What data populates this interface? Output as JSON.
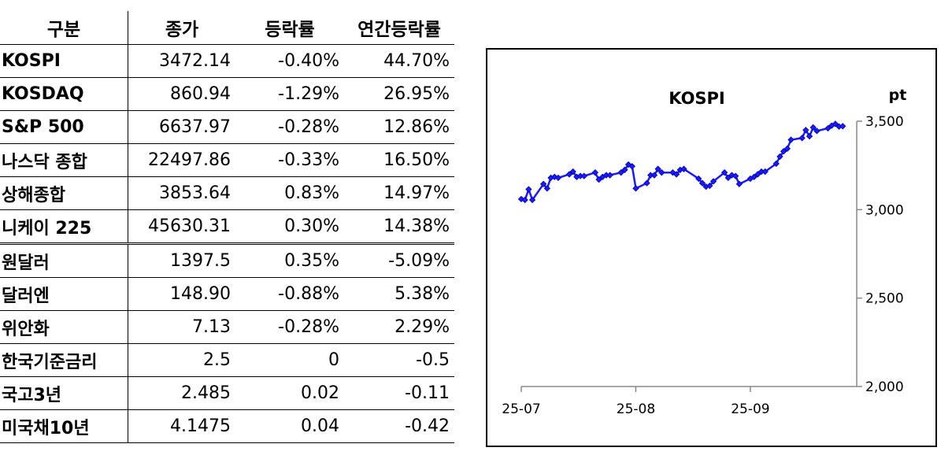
{
  "table": {
    "headers": [
      "구분",
      "종가",
      "등락률",
      "연간등락률"
    ],
    "rows": [
      {
        "name": "KOSPI",
        "close": "3472.14",
        "change": "-0.40%",
        "ytd": "44.70%"
      },
      {
        "name": "KOSDAQ",
        "close": "860.94",
        "change": "-1.29%",
        "ytd": "26.95%"
      },
      {
        "name": "S&P 500",
        "close": "6637.97",
        "change": "-0.28%",
        "ytd": "12.86%"
      },
      {
        "name": "나스닥 종합",
        "close": "22497.86",
        "change": "-0.33%",
        "ytd": "16.50%"
      },
      {
        "name": "상해종합",
        "close": "3853.64",
        "change": "0.83%",
        "ytd": "14.97%"
      },
      {
        "name": "니케이 225",
        "close": "45630.31",
        "change": "0.30%",
        "ytd": "14.38%"
      },
      {
        "name": "원달러",
        "close": "1397.5",
        "change": "0.35%",
        "ytd": "-5.09%"
      },
      {
        "name": "달러엔",
        "close": "148.90",
        "change": "-0.88%",
        "ytd": "5.38%"
      },
      {
        "name": "위안화",
        "close": "7.13",
        "change": "-0.28%",
        "ytd": "2.29%"
      },
      {
        "name": "한국기준금리",
        "close": "2.5",
        "change": "0",
        "ytd": "-0.5"
      },
      {
        "name": "국고3년",
        "close": "2.485",
        "change": "0.02",
        "ytd": "-0.11"
      },
      {
        "name": "미국채10년",
        "close": "4.1475",
        "change": "0.04",
        "ytd": "-0.42"
      }
    ]
  },
  "chart_data": {
    "type": "line",
    "title": "KOSPI",
    "ylabel": "pt",
    "xlabel": "",
    "ylim": [
      2000,
      3500
    ],
    "yticks": [
      2000,
      2500,
      3000,
      3500
    ],
    "ytick_labels": [
      "2,000",
      "2,500",
      "3,000",
      "3,500"
    ],
    "xticks": [
      "25-07",
      "25-08",
      "25-09"
    ],
    "line_color": "#1a1aff",
    "series": [
      {
        "x": [
          "2025-07-01",
          "2025-07-02",
          "2025-07-03",
          "2025-07-04",
          "2025-07-07",
          "2025-07-08",
          "2025-07-09",
          "2025-07-10",
          "2025-07-11",
          "2025-07-14",
          "2025-07-15",
          "2025-07-16",
          "2025-07-17",
          "2025-07-18",
          "2025-07-21",
          "2025-07-22",
          "2025-07-23",
          "2025-07-24",
          "2025-07-25",
          "2025-07-28",
          "2025-07-29",
          "2025-07-30",
          "2025-07-31",
          "2025-08-01",
          "2025-08-04",
          "2025-08-05",
          "2025-08-06",
          "2025-08-07",
          "2025-08-08",
          "2025-08-11",
          "2025-08-12",
          "2025-08-13",
          "2025-08-14",
          "2025-08-18",
          "2025-08-19",
          "2025-08-20",
          "2025-08-21",
          "2025-08-22",
          "2025-08-25",
          "2025-08-26",
          "2025-08-27",
          "2025-08-28",
          "2025-08-29",
          "2025-09-01",
          "2025-09-02",
          "2025-09-03",
          "2025-09-04",
          "2025-09-05",
          "2025-09-08",
          "2025-09-09",
          "2025-09-10",
          "2025-09-11",
          "2025-09-12",
          "2025-09-15",
          "2025-09-16",
          "2025-09-17",
          "2025-09-18",
          "2025-09-19",
          "2025-09-22",
          "2025-09-23",
          "2025-09-24",
          "2025-09-25",
          "2025-09-26"
        ],
        "y": [
          3060,
          3055,
          3115,
          3055,
          3145,
          3120,
          3180,
          3185,
          3180,
          3200,
          3215,
          3185,
          3190,
          3190,
          3210,
          3170,
          3185,
          3195,
          3195,
          3210,
          3225,
          3255,
          3245,
          3120,
          3150,
          3195,
          3195,
          3230,
          3210,
          3210,
          3200,
          3225,
          3230,
          3175,
          3150,
          3130,
          3135,
          3160,
          3210,
          3180,
          3195,
          3190,
          3145,
          3175,
          3185,
          3200,
          3215,
          3215,
          3260,
          3300,
          3330,
          3345,
          3395,
          3405,
          3450,
          3415,
          3465,
          3445,
          3460,
          3475,
          3485,
          3470,
          3472
        ]
      }
    ]
  }
}
